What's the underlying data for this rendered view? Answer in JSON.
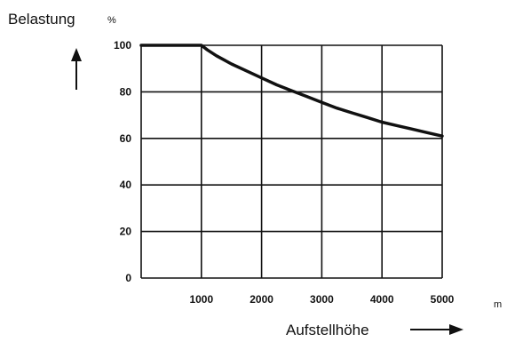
{
  "chart_data": {
    "type": "line",
    "ylabel": "Belastung",
    "yunit": "%",
    "xlabel": "Aufstellhöhe",
    "xunit": "m",
    "xlim": [
      0,
      5000
    ],
    "ylim": [
      0,
      100
    ],
    "xticks": [
      "1000",
      "2000",
      "3000",
      "4000",
      "5000"
    ],
    "yticks": [
      "0",
      "20",
      "40",
      "60",
      "80",
      "100"
    ],
    "grid": true,
    "series": [
      {
        "x": [
          0,
          500,
          1000,
          1100,
          1250,
          1500,
          1750,
          2000,
          2250,
          2500,
          2750,
          3000,
          3250,
          3500,
          3750,
          4000,
          4250,
          4500,
          4750,
          5000
        ],
        "y": [
          100,
          100,
          100,
          98,
          95.5,
          92,
          89,
          86,
          83,
          80.5,
          78,
          75.5,
          73,
          71,
          69,
          67,
          65.5,
          64,
          62.5,
          61
        ]
      }
    ]
  }
}
